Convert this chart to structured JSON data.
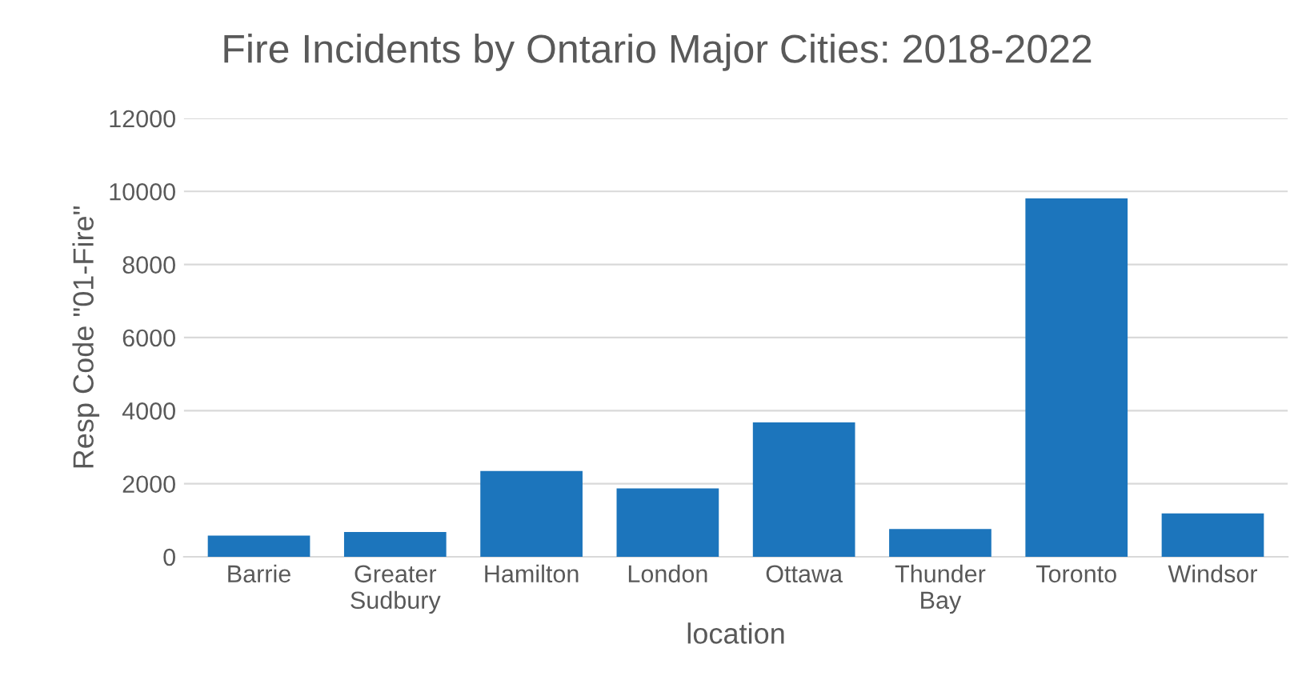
{
  "chart_data": {
    "type": "bar",
    "title": "Fire Incidents by Ontario Major Cities: 2018-2022",
    "xlabel": "location",
    "ylabel": "Resp Code \"01-Fire\"",
    "categories": [
      "Barrie",
      "Greater\nSudbury",
      "Hamilton",
      "London",
      "Ottawa",
      "Thunder\nBay",
      "Toronto",
      "Windsor"
    ],
    "values": [
      580,
      680,
      2350,
      1870,
      3680,
      760,
      9810,
      1190
    ],
    "color": "#1c75bc",
    "ylim": [
      0,
      12000
    ],
    "yticks": [
      0,
      2000,
      4000,
      6000,
      8000,
      10000,
      12000
    ],
    "grid": "y"
  }
}
